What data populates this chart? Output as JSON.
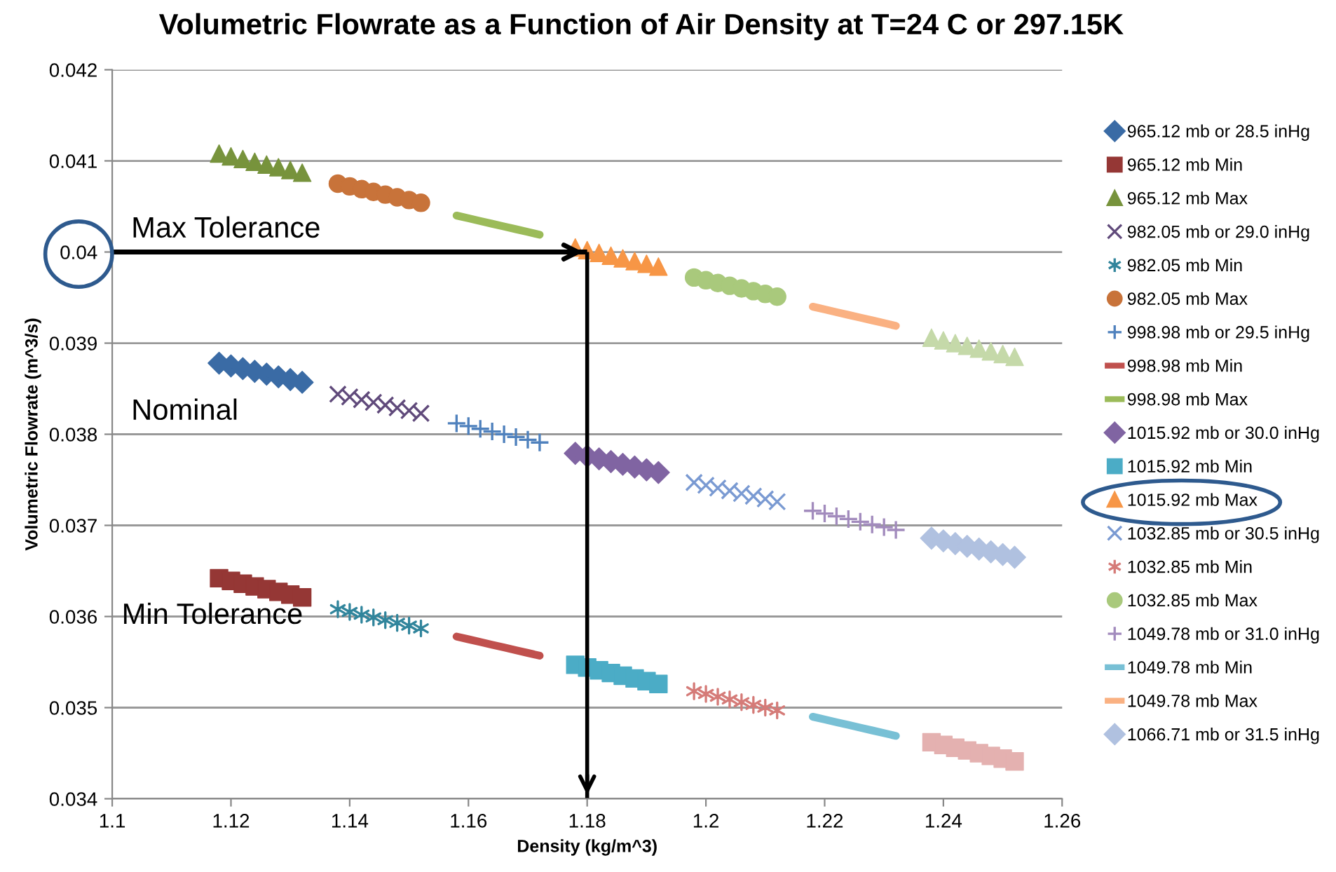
{
  "chart_data": {
    "type": "scatter",
    "title": "Volumetric Flowrate as a Function of Air Density at T=24 C or 297.15K",
    "xlabel": "Density (kg/m^3)",
    "ylabel": "Volumetric Flowrate (m^3/s)",
    "xlim": [
      1.1,
      1.26
    ],
    "xticks": [
      1.1,
      1.12,
      1.14,
      1.16,
      1.18,
      1.2,
      1.22,
      1.24,
      1.26
    ],
    "ylim": [
      0.034,
      0.042
    ],
    "yticks": [
      0.034,
      0.035,
      0.036,
      0.037,
      0.038,
      0.039,
      0.04,
      0.041,
      0.042
    ],
    "grid": "y",
    "legend": "right",
    "annotations": [
      "Max Tolerance",
      "Nominal",
      "Min Tolerance"
    ],
    "ref_lines": [
      {
        "axis": "y",
        "value": 0.04
      },
      {
        "axis": "x",
        "value": 1.18
      }
    ],
    "series": [
      {
        "name": "965.12 mb or 28.5 inHg",
        "color": "#3a6ba5",
        "marker": "diamond",
        "x": [
          1.118,
          1.12,
          1.122,
          1.124,
          1.126,
          1.128,
          1.13,
          1.132
        ],
        "values": [
          0.03878,
          0.03875,
          0.03872,
          0.03869,
          0.03866,
          0.03863,
          0.0386,
          0.03857
        ]
      },
      {
        "name": "965.12 mb Min",
        "color": "#953735",
        "marker": "square",
        "x": [
          1.118,
          1.12,
          1.122,
          1.124,
          1.126,
          1.128,
          1.13,
          1.132
        ],
        "values": [
          0.03642,
          0.03639,
          0.03636,
          0.03633,
          0.0363,
          0.03627,
          0.03624,
          0.03621
        ]
      },
      {
        "name": "965.12 mb Max",
        "color": "#77933c",
        "marker": "triangle",
        "x": [
          1.118,
          1.12,
          1.122,
          1.124,
          1.126,
          1.128,
          1.13,
          1.132
        ],
        "values": [
          0.04108,
          0.04105,
          0.04102,
          0.04099,
          0.04096,
          0.04093,
          0.0409,
          0.04087
        ]
      },
      {
        "name": "982.05 mb or 29.0 inHg",
        "color": "#604a7b",
        "marker": "x",
        "x": [
          1.138,
          1.14,
          1.142,
          1.144,
          1.146,
          1.148,
          1.15,
          1.152
        ],
        "values": [
          0.03844,
          0.03841,
          0.03838,
          0.03835,
          0.03832,
          0.03829,
          0.03826,
          0.03823
        ]
      },
      {
        "name": "982.05 mb Min",
        "color": "#31859c",
        "marker": "cross",
        "x": [
          1.138,
          1.14,
          1.142,
          1.144,
          1.146,
          1.148,
          1.15,
          1.152
        ],
        "values": [
          0.03608,
          0.03605,
          0.03602,
          0.03599,
          0.03596,
          0.03593,
          0.0359,
          0.03587
        ]
      },
      {
        "name": "982.05 mb Max",
        "color": "#c8733a",
        "marker": "circle",
        "x": [
          1.138,
          1.14,
          1.142,
          1.144,
          1.146,
          1.148,
          1.15,
          1.152
        ],
        "values": [
          0.04075,
          0.04072,
          0.04069,
          0.04066,
          0.04063,
          0.0406,
          0.04057,
          0.04054
        ]
      },
      {
        "name": "998.98 mb or 29.5 inHg",
        "color": "#4f81bd",
        "marker": "plus",
        "x": [
          1.158,
          1.16,
          1.162,
          1.164,
          1.166,
          1.168,
          1.17,
          1.172
        ],
        "values": [
          0.03812,
          0.03809,
          0.03806,
          0.03803,
          0.038,
          0.03797,
          0.03794,
          0.03791
        ]
      },
      {
        "name": "998.98 mb Min",
        "color": "#c0504d",
        "type": "line",
        "marker": "none",
        "line_style": "solid",
        "x": [
          1.158,
          1.16,
          1.162,
          1.164,
          1.166,
          1.168,
          1.17,
          1.172
        ],
        "values": [
          0.03578,
          0.03575,
          0.03572,
          0.03569,
          0.03566,
          0.03563,
          0.0356,
          0.03557
        ]
      },
      {
        "name": "998.98 mb Max",
        "color": "#9bbb59",
        "type": "line",
        "marker": "none",
        "line_style": "solid",
        "x": [
          1.158,
          1.16,
          1.162,
          1.164,
          1.166,
          1.168,
          1.17,
          1.172
        ],
        "values": [
          0.0404,
          0.04037,
          0.04034,
          0.04031,
          0.04028,
          0.04025,
          0.04022,
          0.04019
        ]
      },
      {
        "name": "1015.92 mb or 30.0 inHg",
        "color": "#8064a2",
        "marker": "diamond",
        "x": [
          1.178,
          1.18,
          1.182,
          1.184,
          1.186,
          1.188,
          1.19,
          1.192
        ],
        "values": [
          0.03779,
          0.03776,
          0.03773,
          0.0377,
          0.03767,
          0.03764,
          0.03761,
          0.03758
        ]
      },
      {
        "name": "1015.92 mb Min",
        "color": "#4bacc6",
        "marker": "square",
        "x": [
          1.178,
          1.18,
          1.182,
          1.184,
          1.186,
          1.188,
          1.19,
          1.192
        ],
        "values": [
          0.03547,
          0.03544,
          0.03541,
          0.03538,
          0.03535,
          0.03532,
          0.03529,
          0.03526
        ]
      },
      {
        "name": "1015.92 mb Max",
        "color": "#f79646",
        "marker": "triangle",
        "x": [
          1.178,
          1.18,
          1.182,
          1.184,
          1.186,
          1.188,
          1.19,
          1.192
        ],
        "values": [
          0.04005,
          0.04002,
          0.03999,
          0.03996,
          0.03993,
          0.0399,
          0.03987,
          0.03984
        ]
      },
      {
        "name": "1032.85 mb or 30.5 inHg",
        "color": "#7a9ad2",
        "marker": "x",
        "x": [
          1.198,
          1.2,
          1.202,
          1.204,
          1.206,
          1.208,
          1.21,
          1.212
        ],
        "values": [
          0.03747,
          0.03744,
          0.03741,
          0.03738,
          0.03735,
          0.03732,
          0.03729,
          0.03726
        ]
      },
      {
        "name": "1032.85 mb Min",
        "color": "#d57b78",
        "marker": "cross",
        "x": [
          1.198,
          1.2,
          1.202,
          1.204,
          1.206,
          1.208,
          1.21,
          1.212
        ],
        "values": [
          0.03518,
          0.03515,
          0.03512,
          0.03509,
          0.03506,
          0.03503,
          0.035,
          0.03497
        ]
      },
      {
        "name": "1032.85 mb Max",
        "color": "#a9c97c",
        "marker": "circle",
        "x": [
          1.198,
          1.2,
          1.202,
          1.204,
          1.206,
          1.208,
          1.21,
          1.212
        ],
        "values": [
          0.03972,
          0.03969,
          0.03966,
          0.03963,
          0.0396,
          0.03957,
          0.03954,
          0.03951
        ]
      },
      {
        "name": "1049.78 mb or 31.0 inHg",
        "color": "#a28bbd",
        "marker": "plus",
        "x": [
          1.218,
          1.22,
          1.222,
          1.224,
          1.226,
          1.228,
          1.23,
          1.232
        ],
        "values": [
          0.03716,
          0.03713,
          0.0371,
          0.03707,
          0.03704,
          0.03701,
          0.03698,
          0.03695
        ]
      },
      {
        "name": "1049.78 mb Min",
        "color": "#78c0d5",
        "type": "line",
        "marker": "none",
        "line_style": "solid",
        "x": [
          1.218,
          1.22,
          1.222,
          1.224,
          1.226,
          1.228,
          1.23,
          1.232
        ],
        "values": [
          0.0349,
          0.03487,
          0.03484,
          0.03481,
          0.03478,
          0.03475,
          0.03472,
          0.03469
        ]
      },
      {
        "name": "1049.78 mb Max",
        "color": "#fab182",
        "type": "line",
        "marker": "none",
        "line_style": "solid",
        "x": [
          1.218,
          1.22,
          1.222,
          1.224,
          1.226,
          1.228,
          1.23,
          1.232
        ],
        "values": [
          0.0394,
          0.03937,
          0.03934,
          0.03931,
          0.03928,
          0.03925,
          0.03922,
          0.03919
        ]
      },
      {
        "name": "1066.71 mb or 31.5 inHg",
        "color": "#b0c1e0",
        "marker": "diamond",
        "x": [
          1.238,
          1.24,
          1.242,
          1.244,
          1.246,
          1.248,
          1.25,
          1.252
        ],
        "values": [
          0.03686,
          0.03683,
          0.0368,
          0.03677,
          0.03674,
          0.03671,
          0.03668,
          0.03665
        ]
      },
      {
        "color": "#e4b1b0",
        "marker": "square",
        "x": [
          1.238,
          1.24,
          1.242,
          1.244,
          1.246,
          1.248,
          1.25,
          1.252
        ],
        "values": [
          0.03462,
          0.03459,
          0.03456,
          0.03453,
          0.0345,
          0.03447,
          0.03444,
          0.03441
        ]
      },
      {
        "color": "#c5d9a9",
        "marker": "triangle",
        "x": [
          1.238,
          1.24,
          1.242,
          1.244,
          1.246,
          1.248,
          1.25,
          1.252
        ],
        "values": [
          0.03906,
          0.03903,
          0.039,
          0.03897,
          0.03894,
          0.03891,
          0.03888,
          0.03885
        ]
      }
    ]
  }
}
